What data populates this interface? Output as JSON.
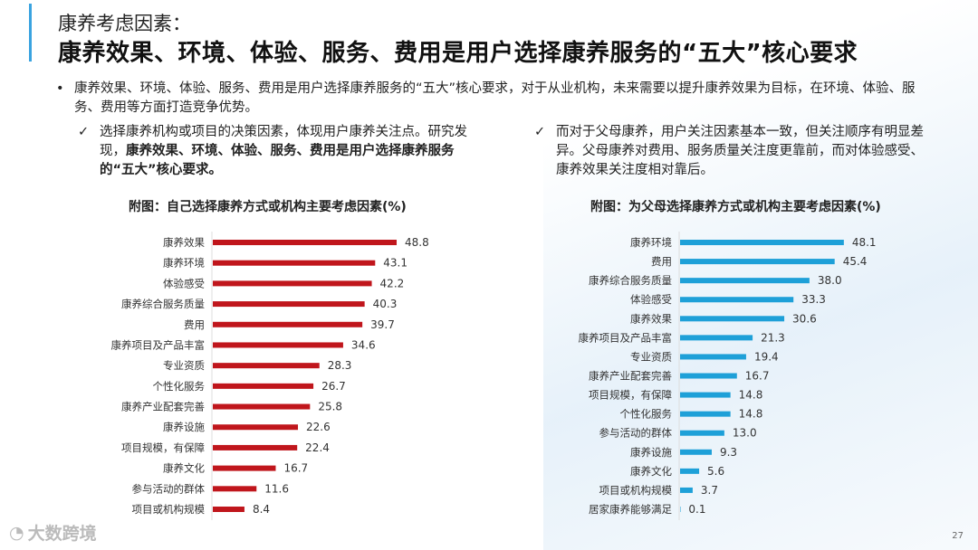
{
  "header": {
    "subtitle": "康养考虑因素：",
    "title": "康养效果、环境、体验、服务、费用是用户选择康养服务的“五大”核心要求"
  },
  "bullet": {
    "text": "康养效果、环境、体验、服务、费用是用户选择康养服务的“五大”核心要求，对于从业机构，未来需要以提升康养效果为目标，在环境、体验、服务、费用等方面打造竞争优势。"
  },
  "left_note": {
    "text1": "选择康养机构或项目的决策因素，体现用户康养关注点。研究发现，",
    "bold": "康养效果、环境、体验、服务、费用是用户选择康养服务的“五大”核心要求。"
  },
  "right_note": {
    "text": "而对于父母康养，用户关注因素基本一致，但关注顺序有明显差异。父母康养对费用、服务质量关注度更靠前，而对体验感受、康养效果关注度相对靠后。"
  },
  "footer": {
    "logo": "大数跨境",
    "page": "27"
  },
  "chart_data": [
    {
      "type": "bar",
      "orientation": "horizontal",
      "title": "附图：自己选择康养方式或机构主要考虑因素(%)",
      "color": "#c0161c",
      "categories": [
        "康养效果",
        "康养环境",
        "体验感受",
        "康养综合服务质量",
        "费用",
        "康养项目及产品丰富",
        "专业资质",
        "个性化服务",
        "康养产业配套完善",
        "康养设施",
        "项目规模，有保障",
        "康养文化",
        "参与活动的群体",
        "项目或机构规模"
      ],
      "values": [
        48.8,
        43.1,
        42.2,
        40.3,
        39.7,
        34.6,
        28.3,
        26.7,
        25.8,
        22.6,
        22.4,
        16.7,
        11.6,
        8.4
      ]
    },
    {
      "type": "bar",
      "orientation": "horizontal",
      "title": "附图：为父母选择康养方式或机构主要考虑因素(%)",
      "color": "#1ea0d8",
      "categories": [
        "康养环境",
        "费用",
        "康养综合服务质量",
        "体验感受",
        "康养效果",
        "康养项目及产品丰富",
        "专业资质",
        "康养产业配套完善",
        "项目规模，有保障",
        "个性化服务",
        "参与活动的群体",
        "康养设施",
        "康养文化",
        "项目或机构规模",
        "居家康养能够满足"
      ],
      "values": [
        48.1,
        45.4,
        38.0,
        33.3,
        30.6,
        21.3,
        19.4,
        16.7,
        14.8,
        14.8,
        13.0,
        9.3,
        5.6,
        3.7,
        0.1
      ]
    }
  ]
}
